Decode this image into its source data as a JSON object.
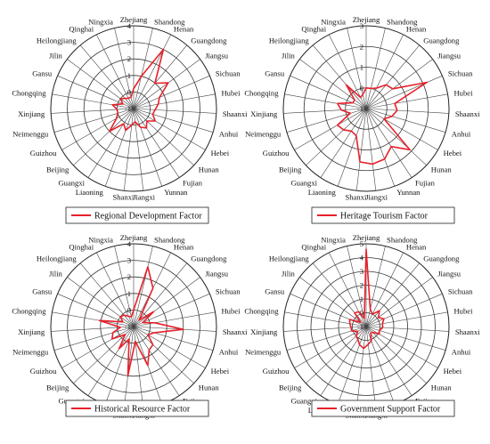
{
  "provinces": [
    "Zhejiang",
    "Shandong",
    "Henan",
    "Guangdong",
    "Jiangsu",
    "Sichuan",
    "Hubei",
    "Shaanxi",
    "Anhui",
    "Hebei",
    "Hunan",
    "Fujian",
    "Yunnan",
    "Jiangxi",
    "Shanxi",
    "Liaoning",
    "Guangxi",
    "Beijing",
    "Guizhou",
    "Neimenggu",
    "Xinjiang",
    "Chongqing",
    "Gansu",
    "Jilin",
    "Heilongjiang",
    "Qinghai",
    "Ningxia"
  ],
  "series_color": "#e8202a",
  "chart_data": [
    {
      "type": "radar",
      "series_name": "Regional Development Factor",
      "rmin": -1,
      "rmax": 4,
      "ticks": [
        "-1",
        "0",
        "1",
        "2",
        "3",
        "4"
      ],
      "values": [
        0.2,
        1.0,
        3.0,
        1.0,
        1.6,
        0.7,
        0.5,
        0.3,
        0.2,
        0.5,
        0.1,
        0.4,
        0.2,
        -0.2,
        0.0,
        0.4,
        0.1,
        1.0,
        0.2,
        0.0,
        0.0,
        0.3,
        -0.3,
        0.0,
        -0.2,
        -0.3,
        -0.3
      ]
    },
    {
      "type": "radar",
      "series_name": "Heritage Tourism Factor",
      "rmin": -1,
      "rmax": 3,
      "ticks": [
        "-1",
        "0",
        "1",
        "2",
        "3"
      ],
      "values": [
        0.0,
        0.0,
        0.1,
        0.5,
        0.6,
        2.2,
        0.4,
        0.5,
        0.3,
        0.0,
        1.9,
        1.2,
        1.6,
        1.7,
        1.6,
        0.4,
        0.3,
        0.5,
        0.6,
        -0.2,
        0.2,
        0.4,
        -0.3,
        -0.3,
        0.5,
        -0.4,
        -0.3
      ]
    },
    {
      "type": "radar",
      "series_name": "Historical Resource Factor",
      "rmin": -1,
      "rmax": 4,
      "ticks": [
        "-1",
        "0",
        "1",
        "2",
        "3",
        "4"
      ],
      "values": [
        0.0,
        2.7,
        1.6,
        -0.5,
        0.5,
        -0.4,
        0.3,
        2.0,
        0.3,
        0.0,
        0.6,
        0.7,
        1.5,
        -0.1,
        2.0,
        -0.2,
        0.6,
        -0.3,
        0.5,
        0.3,
        -0.2,
        1.1,
        -0.3,
        0.0,
        -0.1,
        -0.3,
        -0.4
      ]
    },
    {
      "type": "radar",
      "series_name": "Government Support Factor",
      "rmin": -1,
      "rmax": 5,
      "ticks": [
        "-1",
        "0",
        "1",
        "2",
        "3",
        "4",
        "5"
      ],
      "values": [
        4.6,
        0.3,
        0.0,
        0.5,
        0.1,
        0.4,
        0.2,
        0.2,
        0.0,
        0.1,
        -0.4,
        -0.4,
        0.1,
        0.3,
        0.6,
        0.4,
        0.1,
        0.0,
        -0.3,
        0.1,
        0.1,
        0.2,
        0.3,
        -0.5,
        0.3,
        0.2,
        -0.4
      ]
    }
  ]
}
